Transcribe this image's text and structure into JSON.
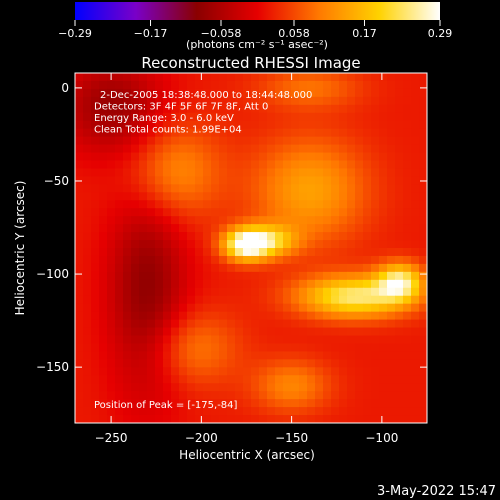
{
  "chart_data": {
    "type": "heatmap",
    "title": "Reconstructed RHESSI Image",
    "xlabel": "Heliocentric X (arcsec)",
    "ylabel": "Heliocentric Y (arcsec)",
    "xlim": [
      -270,
      -75
    ],
    "ylim": [
      -180,
      8
    ],
    "x_ticks": [
      -250,
      -200,
      -150,
      -100
    ],
    "x_tick_labels": [
      "−250",
      "−200",
      "−150",
      "−100"
    ],
    "y_ticks": [
      0,
      -50,
      -100,
      -150
    ],
    "y_tick_labels": [
      "0",
      "−50",
      "−100",
      "−150"
    ],
    "colorbar": {
      "range": [
        -0.29,
        0.29
      ],
      "tick_values": [
        -0.29,
        -0.17,
        -0.058,
        0.058,
        0.17,
        0.29
      ],
      "tick_labels": [
        "−0.29",
        "−0.17",
        "−0.058",
        "0.058",
        "0.17",
        "0.29"
      ],
      "unit_label": "(photons cm⁻² s⁻¹ asec⁻²)"
    },
    "colormap_stops": [
      "#0000ff",
      "#7a00c8",
      "#8a0000",
      "#e60000",
      "#ff7800",
      "#ffd200",
      "#ffffff"
    ],
    "annotations": [
      "2-Dec-2005 18:38:48.000 to 18:44:48.000",
      "Detectors: 3F 4F 5F 6F 7F 8F, Att 0",
      "Energy Range: 3.0 - 6.0 keV",
      "Clean     Total counts: 1.99E+04"
    ],
    "peak_label": "Position of Peak = [-175,-84]",
    "sources": [
      {
        "x": -175,
        "y": -84,
        "intensity": 0.29,
        "sx": 9,
        "sy": 6
      },
      {
        "x": -160,
        "y": -82,
        "intensity": 0.13,
        "sx": 10,
        "sy": 6
      },
      {
        "x": -115,
        "y": -112,
        "intensity": 0.22,
        "sx": 22,
        "sy": 8
      },
      {
        "x": -90,
        "y": -104,
        "intensity": 0.2,
        "sx": 9,
        "sy": 7
      },
      {
        "x": -140,
        "y": -55,
        "intensity": 0.12,
        "sx": 22,
        "sy": 20
      },
      {
        "x": -215,
        "y": -45,
        "intensity": 0.1,
        "sx": 18,
        "sy": 18
      },
      {
        "x": -205,
        "y": -140,
        "intensity": 0.08,
        "sx": 18,
        "sy": 14
      },
      {
        "x": -150,
        "y": -160,
        "intensity": 0.09,
        "sx": 15,
        "sy": 10
      },
      {
        "x": -140,
        "y": 0,
        "intensity": 0.07,
        "sx": 20,
        "sy": 8
      },
      {
        "x": -230,
        "y": -110,
        "intensity": -0.11,
        "sx": 15,
        "sy": 40
      },
      {
        "x": -250,
        "y": -10,
        "intensity": -0.1,
        "sx": 20,
        "sy": 18
      }
    ]
  },
  "timestamp": "3-May-2022 15:47"
}
